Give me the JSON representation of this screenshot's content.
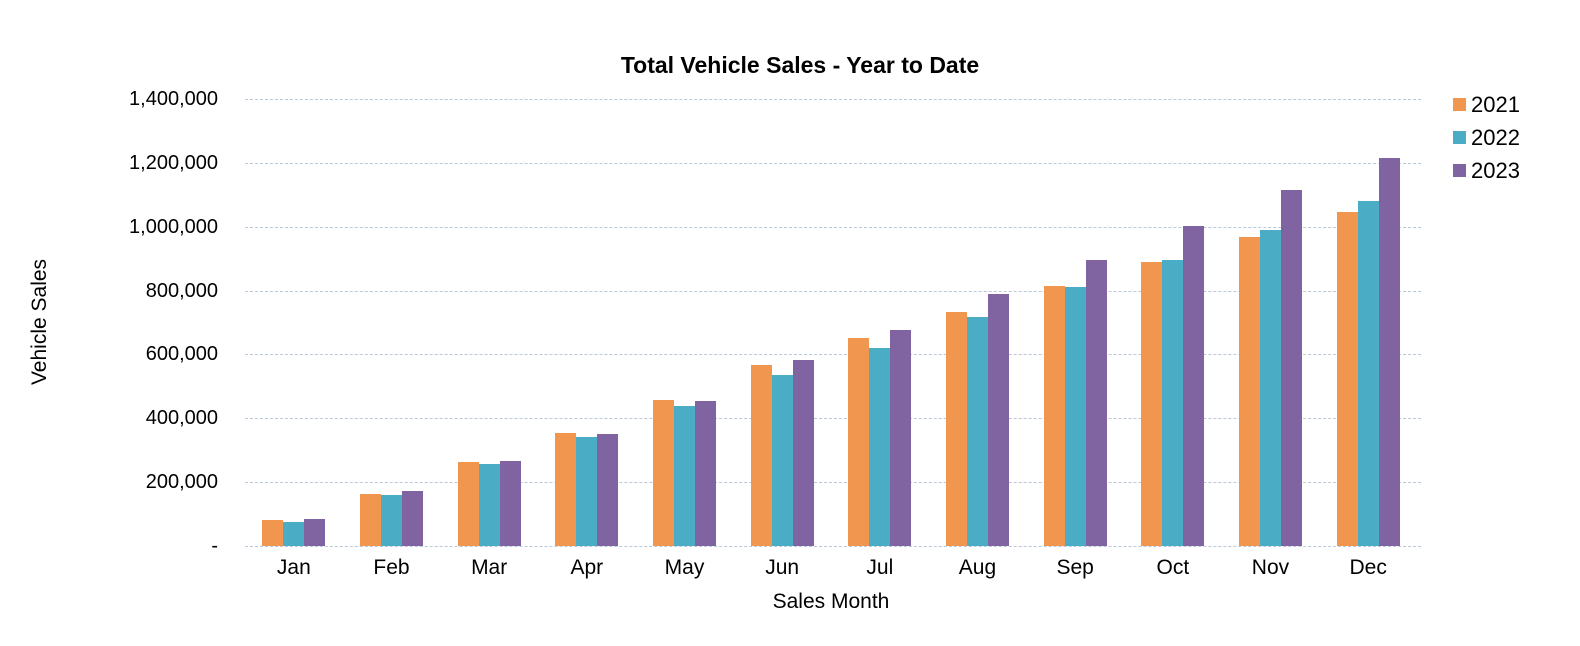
{
  "chart_data": {
    "type": "bar",
    "title": "Total Vehicle Sales - Year to Date",
    "xlabel": "Sales Month",
    "ylabel": "Vehicle Sales",
    "categories": [
      "Jan",
      "Feb",
      "Mar",
      "Apr",
      "May",
      "Jun",
      "Jul",
      "Aug",
      "Sep",
      "Oct",
      "Nov",
      "Dec"
    ],
    "series": [
      {
        "name": "2021",
        "color": "#F0964F",
        "values": [
          80000,
          163000,
          262000,
          355000,
          457000,
          567000,
          650000,
          733000,
          815000,
          888000,
          968000,
          1047000
        ]
      },
      {
        "name": "2022",
        "color": "#4BACC6",
        "values": [
          76000,
          160000,
          258000,
          340000,
          437000,
          535000,
          621000,
          717000,
          810000,
          896000,
          990000,
          1081000
        ]
      },
      {
        "name": "2023",
        "color": "#8064A2",
        "values": [
          86000,
          172000,
          267000,
          350000,
          455000,
          582000,
          678000,
          788000,
          897000,
          1002000,
          1116000,
          1215000
        ]
      }
    ],
    "ylim": [
      0,
      1400000
    ],
    "ytick_step": 200000,
    "ytick_labels": [
      "-",
      "200,000",
      "400,000",
      "600,000",
      "800,000",
      "1,000,000",
      "1,200,000",
      "1,400,000"
    ],
    "grid": true,
    "legend_position": "top-right"
  },
  "colors": {
    "gridline": "#b9c8da",
    "text": "#000000",
    "background": "#ffffff"
  }
}
